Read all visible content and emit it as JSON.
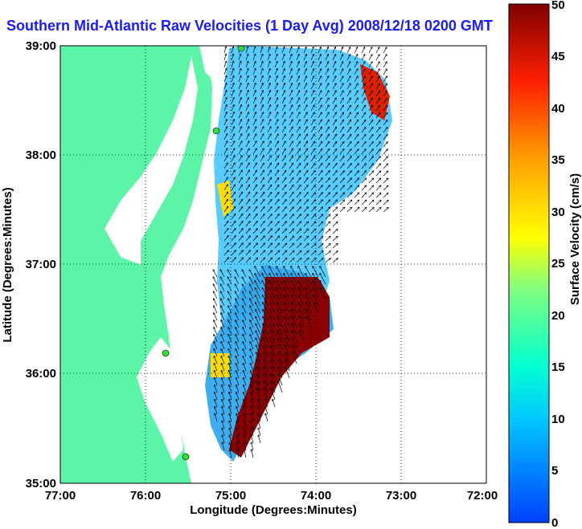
{
  "title": "Southern Mid-Atlantic Raw Velocities (1 Day Avg) 2008/12/18 0200 GMT",
  "xlabel": "Longitude (Degrees:Minutes)",
  "ylabel": "Latitude (Degrees:Minutes)",
  "colorbar": {
    "label": "Surface Velocity (cm/s)",
    "ticks": [
      "0",
      "5",
      "10",
      "15",
      "20",
      "25",
      "30",
      "35",
      "40",
      "45",
      "50"
    ],
    "range": [
      0,
      50
    ]
  },
  "x_ticks": [
    "77:00",
    "76:00",
    "75:00",
    "74:00",
    "73:00",
    "72:00"
  ],
  "y_ticks": [
    "39:00",
    "38:00",
    "37:00",
    "36:00",
    "35:00"
  ],
  "colors": {
    "land": "#5cf5a8",
    "water": "#ffffff",
    "title": "#1a1aff",
    "station": "#33dd33"
  },
  "chart_data": {
    "type": "heatmap",
    "description_type": "surface current velocity field with vectors",
    "xlim": [
      -77,
      -72
    ],
    "ylim": [
      35,
      39
    ],
    "grid": true,
    "stations": [
      {
        "lon": -74.9,
        "lat": 39.0
      },
      {
        "lon": -75.1,
        "lat": 38.23
      },
      {
        "lon": -75.7,
        "lat": 36.18
      },
      {
        "lon": -75.5,
        "lat": 35.25
      }
    ],
    "high_velocity_zones_cm_s": [
      {
        "lon": -73.35,
        "lat": 38.7,
        "value": 48
      },
      {
        "lon": -74.15,
        "lat": 36.6,
        "value": 50
      },
      {
        "lon": -74.7,
        "lat": 35.5,
        "value": 50
      }
    ]
  }
}
